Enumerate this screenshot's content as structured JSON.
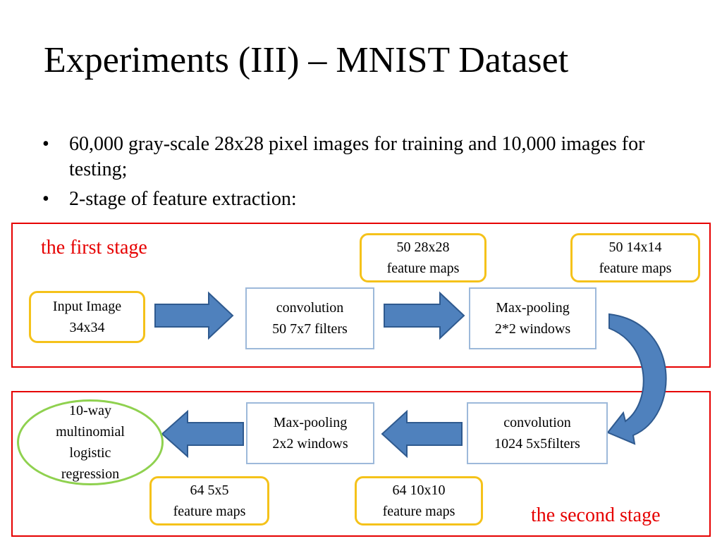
{
  "title": "Experiments (III) – MNIST Dataset",
  "bullets": [
    {
      "symbol": "•",
      "text": "60,000 gray-scale 28x28 pixel images for training and 10,000 images for testing;"
    },
    {
      "symbol": "•",
      "text": "2-stage of feature extraction:"
    }
  ],
  "stage1": {
    "label": "the first stage",
    "input": {
      "line1": "Input Image",
      "line2": "34x34"
    },
    "conv": {
      "line1": "convolution",
      "line2": "50  7x7 filters"
    },
    "maps_conv": {
      "line1": "50  28x28",
      "line2": "feature maps"
    },
    "pool": {
      "line1": "Max-pooling",
      "line2": "2*2 windows"
    },
    "maps_pool": {
      "line1": "50  14x14",
      "line2": "feature maps"
    }
  },
  "stage2": {
    "label": "the second stage",
    "conv": {
      "line1": "convolution",
      "line2": "1024  5x5filters"
    },
    "maps_conv": {
      "line1": "64  10x10",
      "line2": "feature maps"
    },
    "pool": {
      "line1": "Max-pooling",
      "line2": "2x2 windows"
    },
    "maps_pool": {
      "line1": "64  5x5",
      "line2": "feature maps"
    },
    "output": {
      "line1": "10-way",
      "line2": "multinomial",
      "line3": "logistic",
      "line4": "regression"
    }
  },
  "colors": {
    "frame": "#e60000",
    "feature_map_border": "#f5c21a",
    "process_border": "#9db9da",
    "output_border": "#8fd14f",
    "arrow_fill": "#4f81bd",
    "arrow_stroke": "#2f5a8f"
  }
}
